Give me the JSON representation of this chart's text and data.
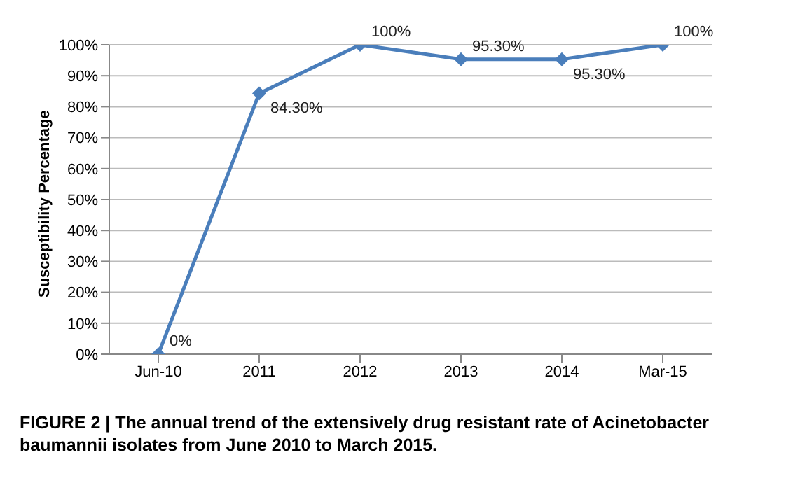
{
  "chart_data": {
    "type": "line",
    "title": "FIGURE 2 | The annual trend of the extensively drug resistant rate of Acinetobacter baumannii isolates from June 2010 to March 2015.",
    "ylabel": "Susceptibility Percentage",
    "categories": [
      "Jun-10",
      "2011",
      "2012",
      "2013",
      "2014",
      "Mar-15"
    ],
    "series": [
      {
        "color": "#4a7ebb",
        "values": [
          0,
          84.3,
          100,
          95.3,
          95.3,
          100
        ],
        "value_labels": [
          "0%",
          "84.30%",
          "100%",
          "95.30%",
          "95.30%",
          "100%"
        ]
      }
    ],
    "ylim": [
      0,
      100
    ],
    "yticks": [
      {
        "value": 0,
        "label": "0%"
      },
      {
        "value": 10,
        "label": "10%"
      },
      {
        "value": 20,
        "label": "20%"
      },
      {
        "value": 30,
        "label": "30%"
      },
      {
        "value": 40,
        "label": "40%"
      },
      {
        "value": 50,
        "label": "50%"
      },
      {
        "value": 60,
        "label": "60%"
      },
      {
        "value": 70,
        "label": "70%"
      },
      {
        "value": 80,
        "label": "80%"
      },
      {
        "value": 90,
        "label": "90%"
      },
      {
        "value": 100,
        "label": "100%"
      }
    ],
    "grid": "y",
    "marker": "diamond",
    "line_style": "solid",
    "legend": false
  }
}
